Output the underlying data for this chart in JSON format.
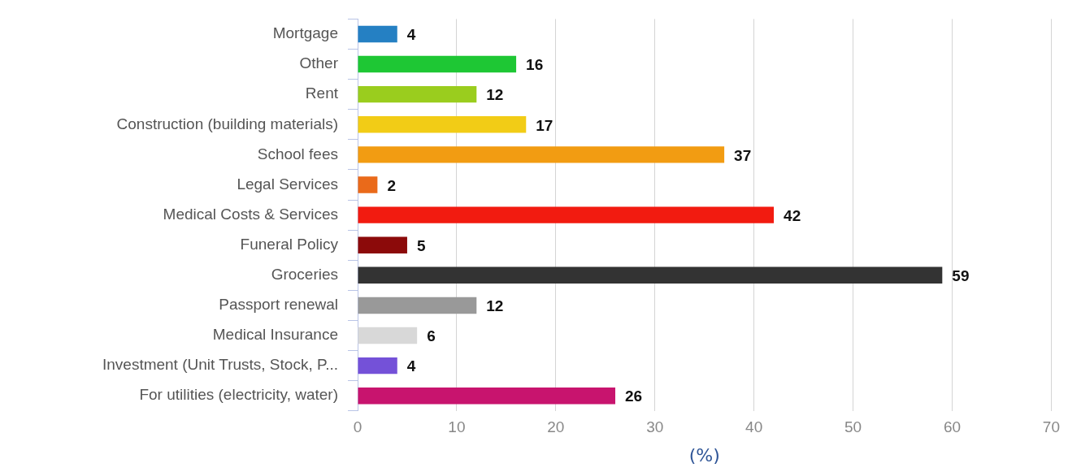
{
  "chart_data": {
    "type": "bar",
    "orientation": "horizontal",
    "xlabel": "(%)",
    "categories": [
      "Mortgage",
      "Other",
      "Rent",
      "Construction (building materials)",
      "School fees",
      "Legal Services",
      "Medical Costs & Services",
      "Funeral Policy",
      "Groceries",
      "Passport renewal",
      "Medical Insurance",
      "Investment (Unit Trusts, Stock, P...",
      "For utilities (electricity, water)"
    ],
    "values": [
      4,
      16,
      12,
      17,
      37,
      2,
      42,
      5,
      59,
      12,
      6,
      4,
      26
    ],
    "colors": [
      "#2580c3",
      "#1ec734",
      "#9acd1e",
      "#f2cc16",
      "#f29c12",
      "#ea6a1a",
      "#f21b10",
      "#8c0a0a",
      "#333333",
      "#999999",
      "#d8d8d8",
      "#7451d8",
      "#c8146e"
    ],
    "xlim": [
      0,
      70
    ],
    "xticks": [
      0,
      10,
      20,
      30,
      40,
      50,
      60,
      70
    ],
    "grid": "x",
    "data_labels": true
  }
}
